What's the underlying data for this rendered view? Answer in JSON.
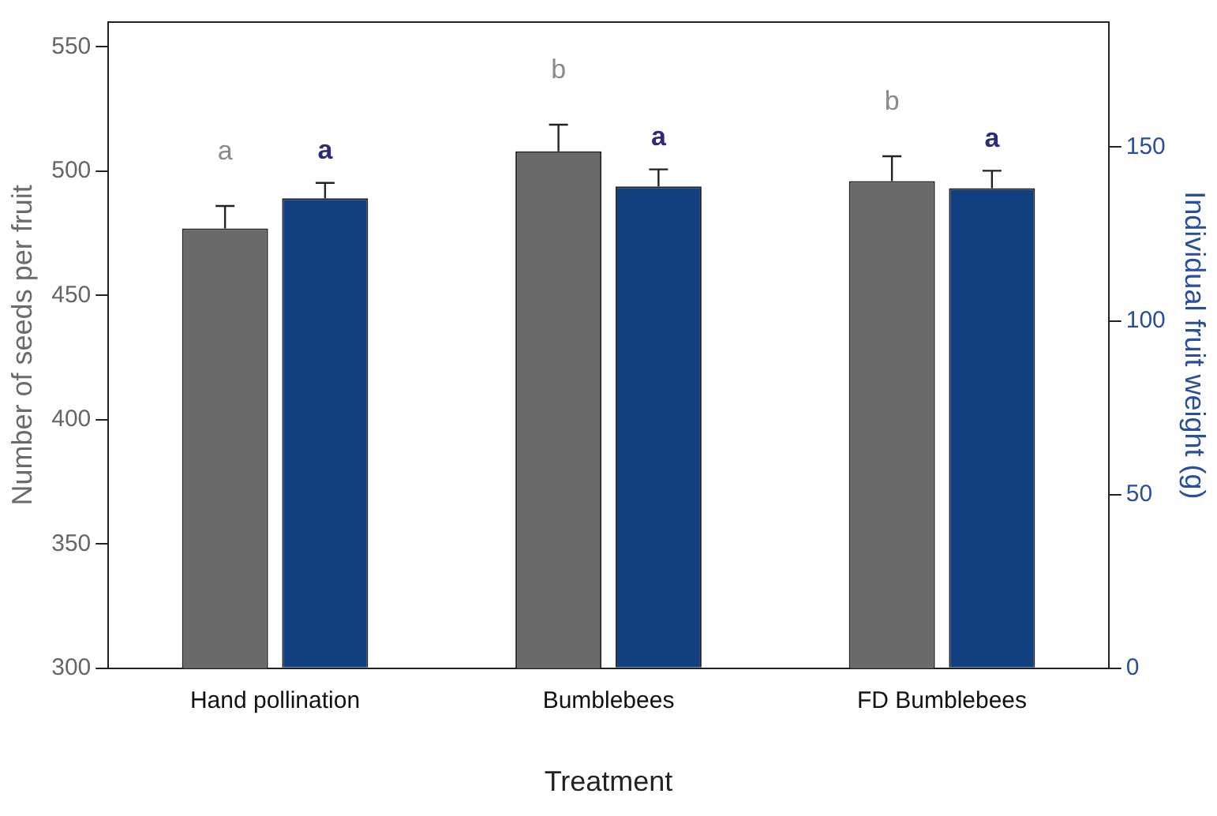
{
  "chart_data": {
    "type": "bar",
    "xlabel": "Treatment",
    "ylabel": "Number of seeds per fruit",
    "y2label": "Individual fruit weight (g)",
    "categories": [
      "Hand pollination",
      "Bumblebees",
      "FD Bumblebees"
    ],
    "series": [
      {
        "color": "#696a69",
        "values": [
          477,
          508,
          496
        ],
        "errors": [
          [
            477,
            486
          ],
          [
            508,
            518.7
          ],
          [
            496,
            506
          ]
        ]
      },
      {
        "color": "#113f80",
        "axis": "y2",
        "values": [
          135.3,
          138.7,
          138.2
        ],
        "errors": [
          [
            135.3,
            139.7
          ],
          [
            138.7,
            143.6
          ],
          [
            138.2,
            143.2
          ]
        ]
      }
    ],
    "ylim": [
      300,
      560
    ],
    "yticks": [
      300,
      350,
      400,
      450,
      500,
      550
    ],
    "y2lim": [
      0,
      186
    ],
    "y2ticks": [
      0,
      50,
      100,
      150
    ],
    "annotations": [
      "a",
      "a",
      "b",
      "a",
      "b",
      "a"
    ],
    "grid": false,
    "legend": false
  }
}
